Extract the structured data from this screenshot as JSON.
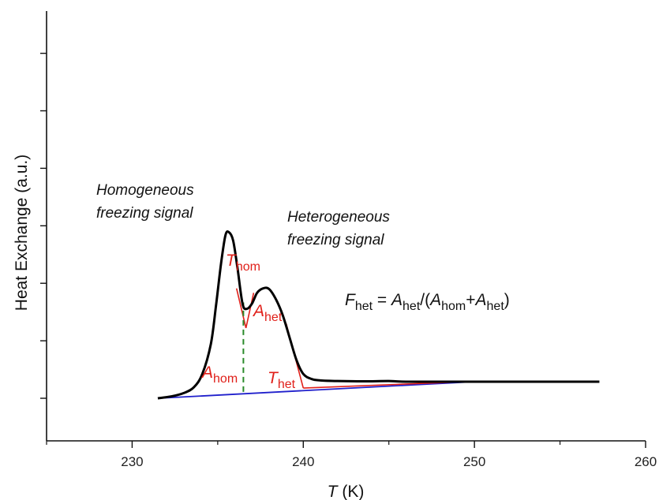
{
  "chart_data": {
    "type": "line",
    "xlabel": {
      "sym": "T",
      "unit": " (K)"
    },
    "ylabel": "Heat Exchange (a.u.)",
    "xlim": [
      225,
      260
    ],
    "x_ticks": [
      230,
      240,
      250,
      260
    ],
    "x_minor_ticks": [
      225,
      235,
      245,
      255
    ],
    "y_ticks_labeled": false,
    "grid": false,
    "series": [
      {
        "color": "#000000",
        "x": [
          231.5,
          232.3,
          233.0,
          233.6,
          234.1,
          234.6,
          234.9,
          235.2,
          235.45,
          235.65,
          235.9,
          236.15,
          236.45,
          236.7,
          237.0,
          237.3,
          237.65,
          238.0,
          238.4,
          238.8,
          239.2,
          239.6,
          240.0,
          240.5,
          241.0,
          242.0,
          243.5,
          245.0,
          246.0,
          250.0,
          257.3
        ],
        "y": [
          0.0,
          0.03,
          0.08,
          0.17,
          0.38,
          0.85,
          1.45,
          2.12,
          2.55,
          2.6,
          2.47,
          2.05,
          1.48,
          1.4,
          1.48,
          1.65,
          1.72,
          1.71,
          1.55,
          1.3,
          0.95,
          0.6,
          0.38,
          0.3,
          0.28,
          0.27,
          0.265,
          0.27,
          0.26,
          0.26,
          0.26
        ]
      },
      {
        "color": "#2020cc",
        "x": [
          231.5,
          250.0
        ],
        "y": [
          0.0,
          0.26
        ]
      }
    ],
    "guides": {
      "t_hom_dashed": {
        "color": "#2a8a2a",
        "x": 236.5,
        "y": [
          0.1,
          1.5
        ]
      },
      "red_tangents": [
        {
          "x": [
            236.1,
            236.65
          ],
          "y": [
            1.72,
            1.1
          ]
        },
        {
          "x": [
            236.65,
            237.1
          ],
          "y": [
            1.1,
            1.65
          ]
        },
        {
          "x": [
            239.0,
            240.0
          ],
          "y": [
            1.17,
            0.16
          ]
        },
        {
          "x": [
            240.0,
            249.6
          ],
          "y": [
            0.16,
            0.26
          ]
        }
      ]
    },
    "annotations": {
      "homogeneous": [
        "Homogeneous",
        "freezing signal"
      ],
      "heterogeneous": [
        "Heterogeneous",
        "freezing signal"
      ],
      "T_hom": {
        "main": "T",
        "sub": "hom"
      },
      "T_het": {
        "main": "T",
        "sub": "het"
      },
      "A_hom": {
        "main": "A",
        "sub": "hom"
      },
      "A_het": {
        "main": "A",
        "sub": "het"
      },
      "equation": {
        "F": "F",
        "F_sub": "het",
        "eq": " = ",
        "A1": "A",
        "A1_sub": "het",
        "slash": "/(",
        "A2": "A",
        "A2_sub": "hom",
        "plus": "+",
        "A3": "A",
        "A3_sub": "het",
        "close": ")"
      }
    }
  }
}
